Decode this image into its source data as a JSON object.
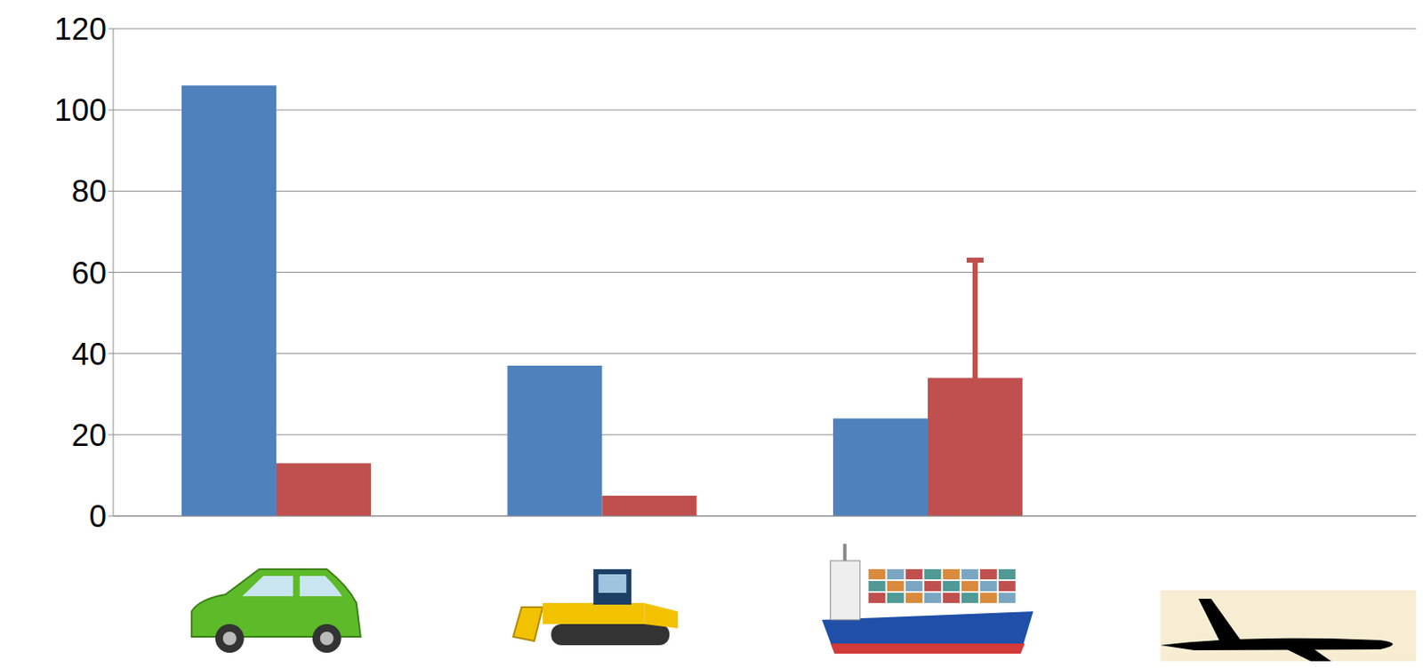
{
  "chart_data": {
    "type": "bar",
    "categories": [
      null,
      null,
      null,
      null
    ],
    "series": [
      {
        "color": "#4F81BD",
        "values": [
          106,
          37,
          24,
          null
        ]
      },
      {
        "color": "#C0504D",
        "values": [
          13,
          5,
          34,
          null
        ],
        "errors": [
          null,
          null,
          29,
          null
        ]
      }
    ],
    "ylim": [
      0,
      120
    ],
    "yticks": [
      0,
      20,
      40,
      60,
      80,
      100,
      120
    ],
    "grid": true
  }
}
